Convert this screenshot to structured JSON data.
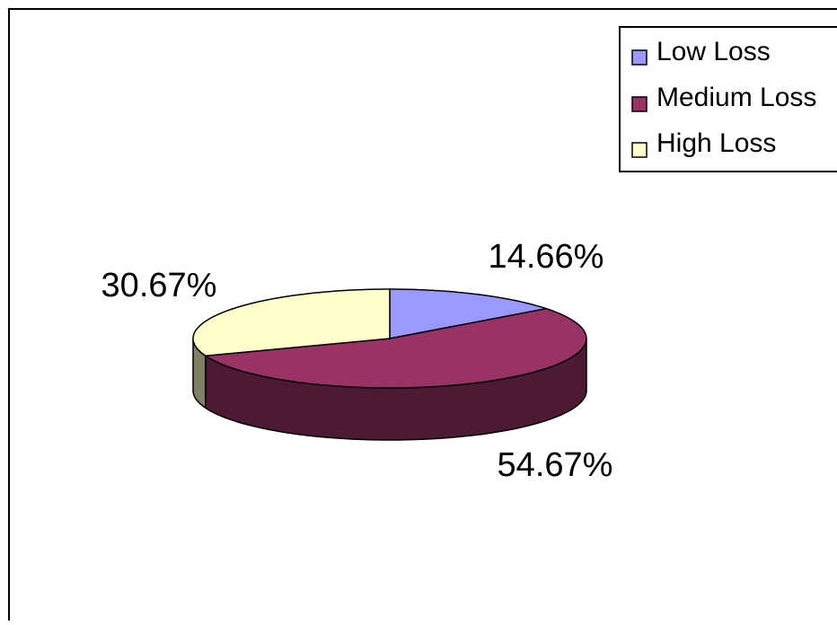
{
  "chart_data": {
    "type": "pie",
    "three_d": true,
    "legend_position": "top-right",
    "slices": [
      {
        "label": "Low Loss",
        "value": 14.66,
        "value_label": "14.66%",
        "top_color": "#9999ff",
        "side_color": "#5f5fa8"
      },
      {
        "label": "Medium Loss",
        "value": 54.67,
        "value_label": "54.67%",
        "top_color": "#993366",
        "side_color": "#4d1a33"
      },
      {
        "label": "High Loss",
        "value": 30.67,
        "value_label": "30.67%",
        "top_color": "#ffffcc",
        "side_color": "#808066"
      }
    ]
  },
  "colors": {
    "outline": "#000000",
    "background": "#ffffff"
  }
}
